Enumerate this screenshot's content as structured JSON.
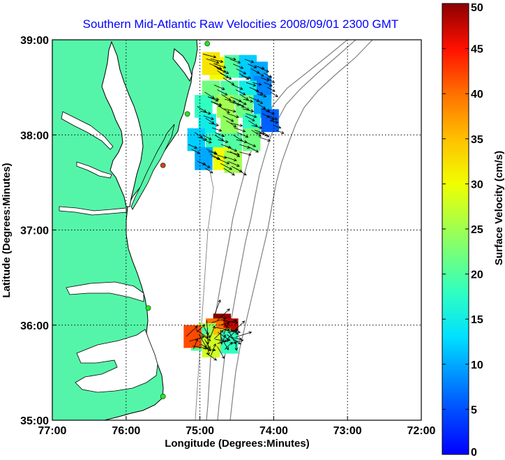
{
  "chart_data": {
    "type": "scatter",
    "title": "Southern Mid-Atlantic Raw Velocities 2008/09/01 2300 GMT",
    "xlabel": "Longitude (Degrees:Minutes)",
    "ylabel": "Latitude (Degrees:Minutes)",
    "xlim": [
      -77,
      -72
    ],
    "ylim": [
      35,
      39
    ],
    "x_ticks": [
      {
        "value": -77,
        "label": "77:00"
      },
      {
        "value": -76,
        "label": "76:00"
      },
      {
        "value": -75,
        "label": "75:00"
      },
      {
        "value": -74,
        "label": "74:00"
      },
      {
        "value": -73,
        "label": "73:00"
      },
      {
        "value": -72,
        "label": "72:00"
      }
    ],
    "y_ticks": [
      {
        "value": 35,
        "label": "35:00"
      },
      {
        "value": 36,
        "label": "36:00"
      },
      {
        "value": 37,
        "label": "37:00"
      },
      {
        "value": 38,
        "label": "38:00"
      },
      {
        "value": 39,
        "label": "39:00"
      }
    ],
    "grid": true,
    "colorbar": {
      "label": "Surface Velocity (cm/s)",
      "min": 0,
      "max": 50,
      "ticks": [
        "0",
        "5",
        "10",
        "15",
        "20",
        "25",
        "30",
        "35",
        "40",
        "45",
        "50"
      ],
      "placement": "right"
    },
    "land_color": "#55f5a9",
    "stations": [
      {
        "lon": -74.9,
        "lat": 38.96,
        "color": "#33dd33"
      },
      {
        "lon": -75.17,
        "lat": 38.22,
        "color": "#33dd33"
      },
      {
        "lon": -75.5,
        "lat": 37.68,
        "color": "#e83030"
      },
      {
        "lon": -75.7,
        "lat": 36.18,
        "color": "#33dd33"
      },
      {
        "lon": -75.5,
        "lat": 35.25,
        "color": "#33dd33"
      }
    ],
    "velocity_fields": [
      {
        "region": "northern",
        "cells": [
          {
            "lon": -74.75,
            "lat": 38.7,
            "speed": 30
          },
          {
            "lon": -74.85,
            "lat": 38.75,
            "speed": 32
          },
          {
            "lon": -74.55,
            "lat": 38.72,
            "speed": 20
          },
          {
            "lon": -74.35,
            "lat": 38.72,
            "speed": 12
          },
          {
            "lon": -74.2,
            "lat": 38.65,
            "speed": 10
          },
          {
            "lon": -74.15,
            "lat": 38.5,
            "speed": 8
          },
          {
            "lon": -74.35,
            "lat": 38.45,
            "speed": 15
          },
          {
            "lon": -74.6,
            "lat": 38.45,
            "speed": 20
          },
          {
            "lon": -74.85,
            "lat": 38.45,
            "speed": 22
          },
          {
            "lon": -74.95,
            "lat": 38.3,
            "speed": 18
          },
          {
            "lon": -74.65,
            "lat": 38.3,
            "speed": 25
          },
          {
            "lon": -74.4,
            "lat": 38.3,
            "speed": 22
          },
          {
            "lon": -74.15,
            "lat": 38.3,
            "speed": 10
          },
          {
            "lon": -74.05,
            "lat": 38.15,
            "speed": 6
          },
          {
            "lon": -74.3,
            "lat": 38.1,
            "speed": 18
          },
          {
            "lon": -74.6,
            "lat": 38.1,
            "speed": 24
          },
          {
            "lon": -74.9,
            "lat": 38.1,
            "speed": 15
          },
          {
            "lon": -75.05,
            "lat": 37.95,
            "speed": 12
          },
          {
            "lon": -74.8,
            "lat": 37.9,
            "speed": 18
          },
          {
            "lon": -74.55,
            "lat": 37.9,
            "speed": 20
          },
          {
            "lon": -74.3,
            "lat": 37.95,
            "speed": 22
          },
          {
            "lon": -74.95,
            "lat": 37.75,
            "speed": 10
          },
          {
            "lon": -74.7,
            "lat": 37.75,
            "speed": 30
          },
          {
            "lon": -74.55,
            "lat": 37.72,
            "speed": 25
          }
        ]
      },
      {
        "region": "southern",
        "cells": [
          {
            "lon": -74.7,
            "lat": 36.0,
            "speed": 50
          },
          {
            "lon": -74.6,
            "lat": 35.95,
            "speed": 48
          },
          {
            "lon": -74.8,
            "lat": 35.95,
            "speed": 40
          },
          {
            "lon": -74.9,
            "lat": 35.9,
            "speed": 25
          },
          {
            "lon": -75.0,
            "lat": 35.85,
            "speed": 20
          },
          {
            "lon": -74.7,
            "lat": 35.85,
            "speed": 35
          },
          {
            "lon": -74.6,
            "lat": 35.82,
            "speed": 18
          },
          {
            "lon": -74.85,
            "lat": 35.78,
            "speed": 28
          },
          {
            "lon": -75.1,
            "lat": 35.88,
            "speed": 42
          }
        ]
      }
    ]
  }
}
